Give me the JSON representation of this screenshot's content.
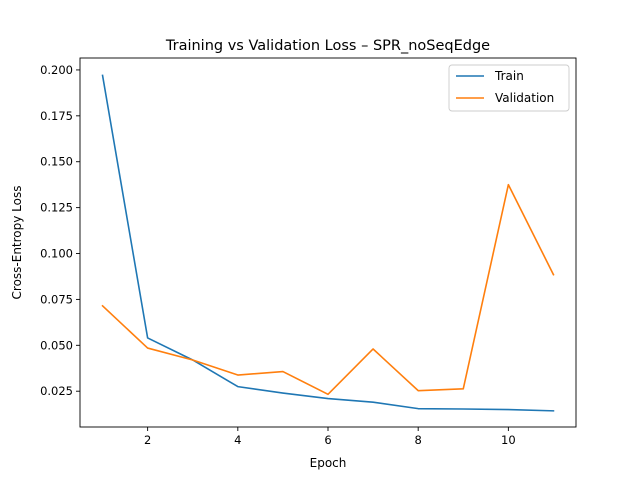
{
  "chart_data": {
    "type": "line",
    "title": "Training vs Validation Loss – SPR_noSeqEdge",
    "xlabel": "Epoch",
    "ylabel": "Cross-Entropy Loss",
    "xlim": [
      0.5,
      11.5
    ],
    "ylim": [
      0.0055,
      0.2065
    ],
    "xticks": [
      2,
      4,
      6,
      8,
      10
    ],
    "yticks": [
      0.025,
      0.05,
      0.075,
      0.1,
      0.125,
      0.15,
      0.175,
      0.2
    ],
    "ytick_labels": [
      "0.025",
      "0.050",
      "0.075",
      "0.100",
      "0.125",
      "0.150",
      "0.175",
      "0.200"
    ],
    "grid": false,
    "legend_position": "top-right",
    "x": [
      1,
      2,
      3,
      4,
      5,
      6,
      7,
      8,
      9,
      10,
      11
    ],
    "series": [
      {
        "name": "Train",
        "color": "#1f77b4",
        "values": [
          0.197,
          0.054,
          0.042,
          0.0275,
          0.024,
          0.021,
          0.019,
          0.0155,
          0.0153,
          0.015,
          0.0143
        ]
      },
      {
        "name": "Validation",
        "color": "#ff7f0e",
        "values": [
          0.0715,
          0.0485,
          0.042,
          0.0338,
          0.0357,
          0.0233,
          0.048,
          0.0253,
          0.0263,
          0.1375,
          0.0885
        ]
      }
    ]
  }
}
